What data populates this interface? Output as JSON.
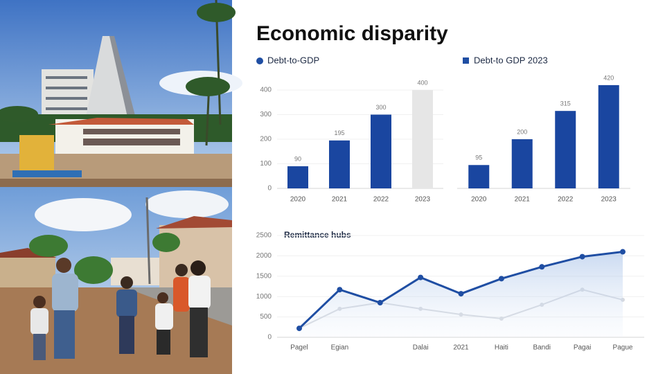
{
  "title": "Economic disparity",
  "chart_data": [
    {
      "type": "bar",
      "title": "Debt-to-GDP",
      "color": "#1f4ea3",
      "categories": [
        "2020",
        "2021",
        "2022",
        "2023"
      ],
      "values": [
        90,
        195,
        300,
        400
      ],
      "value_labels": [
        "90",
        "195",
        "300",
        "400"
      ],
      "colors": [
        "#1a46a0",
        "#1a46a0",
        "#1a46a0",
        "#e6e6e6"
      ],
      "ylim": [
        0,
        400
      ],
      "yticks": [
        0,
        100,
        200,
        300,
        400
      ]
    },
    {
      "type": "bar",
      "title": "Debt-to GDP 2023",
      "color": "#1f4ea3",
      "categories": [
        "2020",
        "2021",
        "2022",
        "2023"
      ],
      "values": [
        95,
        200,
        315,
        420
      ],
      "value_labels": [
        "95",
        "200",
        "315",
        "420"
      ],
      "colors": [
        "#1a46a0",
        "#1a46a0",
        "#1a46a0",
        "#1a46a0"
      ],
      "ylim": [
        0,
        400
      ]
    },
    {
      "type": "line",
      "title": "Remittance hubs",
      "categories": [
        "Pagel",
        "Egian",
        null,
        "Dalai",
        "2021",
        "Haiti",
        "Bandi",
        "Pagai",
        "Pague"
      ],
      "series": [
        {
          "color": "#1f4ea3",
          "values": [
            220,
            1170,
            850,
            1470,
            1070,
            1440,
            1730,
            1980,
            2100
          ]
        },
        {
          "color": "#d6d9df",
          "values": [
            220,
            700,
            850,
            700,
            560,
            460,
            800,
            1170,
            920
          ]
        }
      ],
      "ylim": [
        0,
        2500
      ],
      "yticks": [
        0,
        500,
        1000,
        1500,
        2000,
        2500
      ]
    }
  ]
}
